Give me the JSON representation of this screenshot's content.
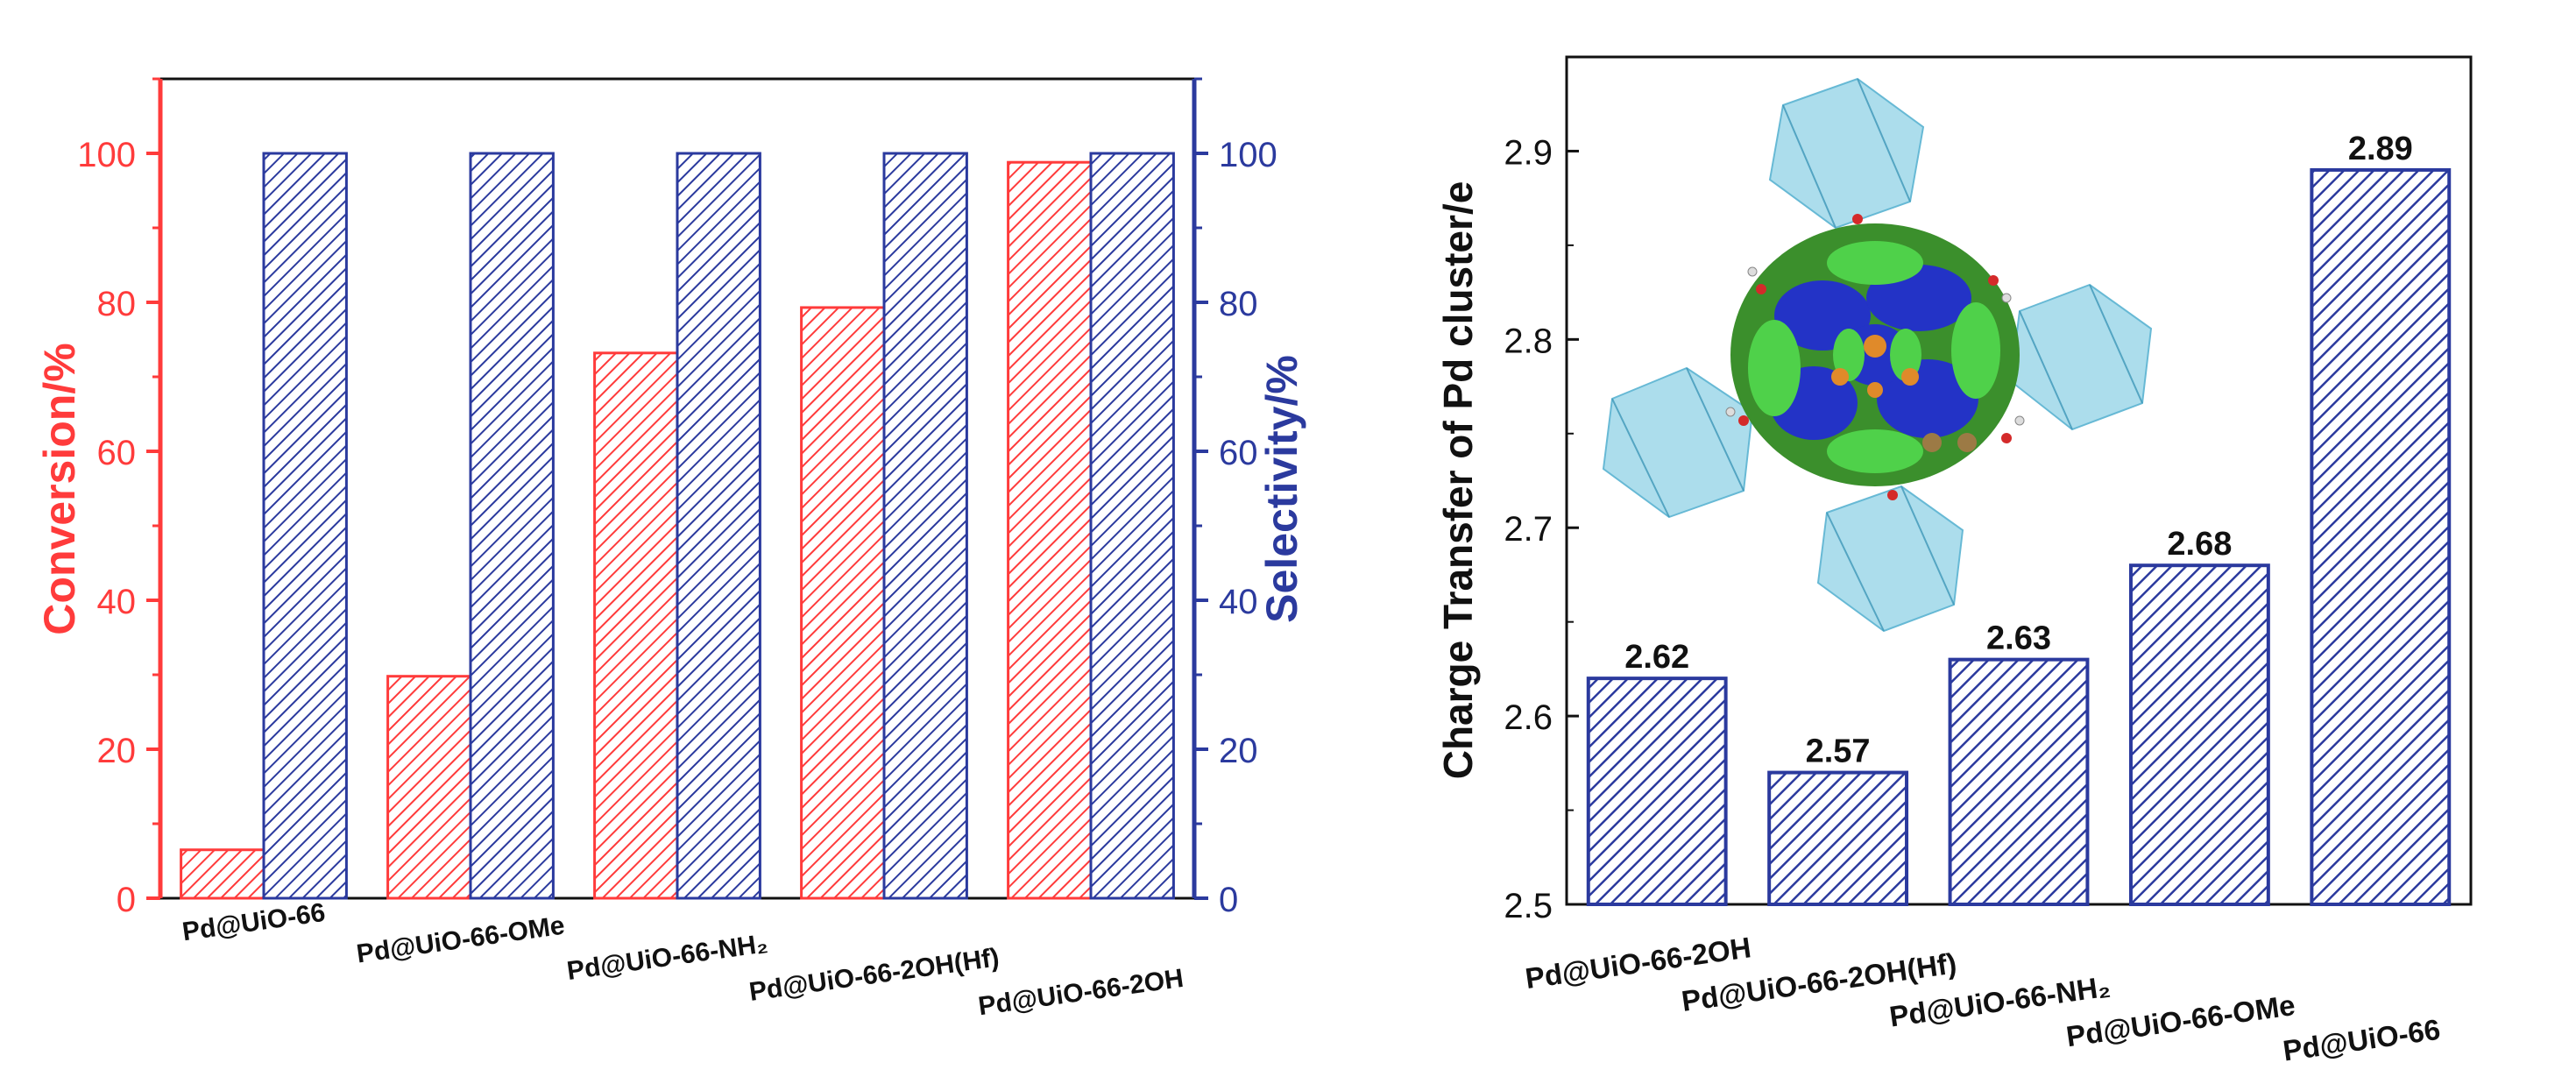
{
  "colors": {
    "conversion": "#ff3b3b",
    "selectivity": "#2b3a9e",
    "axis": "#111111",
    "left_axis": "#ff3b3b",
    "right_axis": "#2b3a9e"
  },
  "chart_data": [
    {
      "type": "bar",
      "title": "",
      "categories": [
        "Pd@UiO-66",
        "Pd@UiO-66-OMe",
        "Pd@UiO-66-NH₂",
        "Pd@UiO-66-2OH(Hf)",
        "Pd@UiO-66-2OH"
      ],
      "series": [
        {
          "name": "Conversion",
          "axis": "left",
          "values": [
            6.5,
            29.8,
            73.2,
            79.3,
            98.8
          ]
        },
        {
          "name": "Selectivity",
          "axis": "right",
          "values": [
            100,
            100,
            100,
            100,
            100
          ]
        }
      ],
      "ylabel_left": "Conversion/%",
      "ylabel_right": "Selectivity/%",
      "xlabel": "",
      "ylim": [
        0,
        110
      ],
      "yticks": [
        "0",
        "20",
        "40",
        "60",
        "80",
        "100"
      ]
    },
    {
      "type": "bar",
      "title": "",
      "categories": [
        "Pd@UiO-66-2OH",
        "Pd@UiO-66-2OH(Hf)",
        "Pd@UiO-66-NH₂",
        "Pd@UiO-66-OMe",
        "Pd@UiO-66"
      ],
      "series": [
        {
          "name": "Charge Transfer",
          "values": [
            2.62,
            2.57,
            2.63,
            2.68,
            2.89
          ],
          "labels": [
            "2.62",
            "2.57",
            "2.63",
            "2.68",
            "2.89"
          ]
        }
      ],
      "ylabel": "Charge Transfer of Pd cluster/e",
      "xlabel": "",
      "ylim": [
        2.5,
        2.95
      ],
      "yticks": [
        "2.5",
        "2.6",
        "2.7",
        "2.8",
        "2.9"
      ],
      "inset": "DFT charge density difference structure of Pd cluster in UiO-66 framework"
    }
  ]
}
